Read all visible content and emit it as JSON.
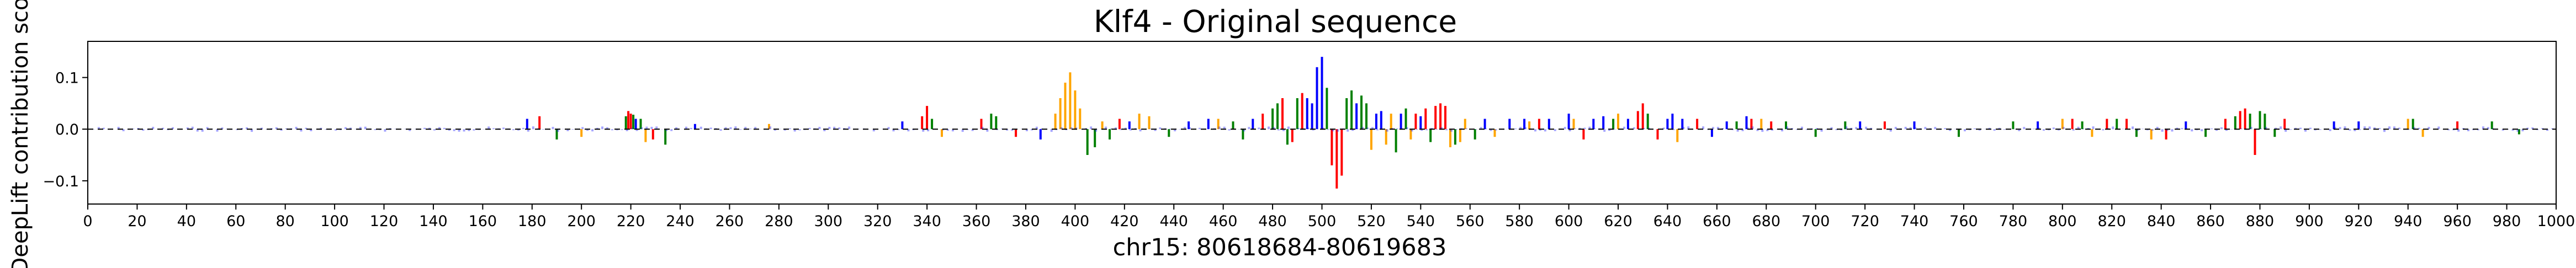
{
  "chart_data": {
    "type": "bar",
    "title": "Klf4 - Original sequence",
    "xlabel": "chr15: 80618684-80619683",
    "ylabel": "DeepLift contribution sco",
    "xlim": [
      0,
      1000
    ],
    "ylim": [
      -0.145,
      0.17
    ],
    "xticks": [
      0,
      20,
      40,
      60,
      80,
      100,
      120,
      140,
      160,
      180,
      200,
      220,
      240,
      260,
      280,
      300,
      320,
      340,
      360,
      380,
      400,
      420,
      440,
      460,
      480,
      500,
      520,
      540,
      560,
      580,
      600,
      620,
      640,
      660,
      680,
      700,
      720,
      740,
      760,
      780,
      800,
      820,
      840,
      860,
      880,
      900,
      920,
      940,
      960,
      980,
      1000
    ],
    "yticks": [
      -0.1,
      0.0,
      0.1
    ],
    "ytick_labels": [
      "−0.1",
      "0.0",
      "0.1"
    ],
    "legend": "none",
    "grid": false,
    "colors": {
      "A": "#008000",
      "C": "#0000ff",
      "G": "#ffa500",
      "T": "#ff0000"
    },
    "series": [
      {
        "position": 178,
        "base": "C",
        "value": 0.02
      },
      {
        "position": 183,
        "base": "T",
        "value": 0.025
      },
      {
        "position": 190,
        "base": "A",
        "value": -0.02
      },
      {
        "position": 200,
        "base": "G",
        "value": -0.015
      },
      {
        "position": 218,
        "base": "A",
        "value": 0.025
      },
      {
        "position": 219,
        "base": "T",
        "value": 0.035
      },
      {
        "position": 220,
        "base": "T",
        "value": 0.03
      },
      {
        "position": 221,
        "base": "A",
        "value": 0.028
      },
      {
        "position": 222,
        "base": "C",
        "value": 0.02
      },
      {
        "position": 224,
        "base": "A",
        "value": 0.02
      },
      {
        "position": 226,
        "base": "G",
        "value": -0.025
      },
      {
        "position": 229,
        "base": "T",
        "value": -0.02
      },
      {
        "position": 234,
        "base": "A",
        "value": -0.03
      },
      {
        "position": 246,
        "base": "C",
        "value": 0.01
      },
      {
        "position": 276,
        "base": "G",
        "value": 0.01
      },
      {
        "position": 330,
        "base": "C",
        "value": 0.015
      },
      {
        "position": 338,
        "base": "T",
        "value": 0.025
      },
      {
        "position": 340,
        "base": "T",
        "value": 0.045
      },
      {
        "position": 342,
        "base": "A",
        "value": 0.02
      },
      {
        "position": 346,
        "base": "G",
        "value": -0.015
      },
      {
        "position": 362,
        "base": "T",
        "value": 0.02
      },
      {
        "position": 366,
        "base": "A",
        "value": 0.03
      },
      {
        "position": 368,
        "base": "A",
        "value": 0.025
      },
      {
        "position": 376,
        "base": "T",
        "value": -0.015
      },
      {
        "position": 386,
        "base": "C",
        "value": -0.02
      },
      {
        "position": 392,
        "base": "G",
        "value": 0.03
      },
      {
        "position": 394,
        "base": "G",
        "value": 0.06
      },
      {
        "position": 396,
        "base": "G",
        "value": 0.09
      },
      {
        "position": 398,
        "base": "G",
        "value": 0.11
      },
      {
        "position": 400,
        "base": "G",
        "value": 0.075
      },
      {
        "position": 402,
        "base": "G",
        "value": 0.04
      },
      {
        "position": 405,
        "base": "A",
        "value": -0.05
      },
      {
        "position": 408,
        "base": "A",
        "value": -0.035
      },
      {
        "position": 411,
        "base": "G",
        "value": 0.015
      },
      {
        "position": 414,
        "base": "A",
        "value": -0.02
      },
      {
        "position": 418,
        "base": "T",
        "value": 0.02
      },
      {
        "position": 422,
        "base": "C",
        "value": 0.015
      },
      {
        "position": 426,
        "base": "G",
        "value": 0.03
      },
      {
        "position": 430,
        "base": "G",
        "value": 0.025
      },
      {
        "position": 438,
        "base": "A",
        "value": -0.015
      },
      {
        "position": 446,
        "base": "C",
        "value": 0.015
      },
      {
        "position": 454,
        "base": "C",
        "value": 0.02
      },
      {
        "position": 458,
        "base": "G",
        "value": 0.02
      },
      {
        "position": 464,
        "base": "A",
        "value": 0.015
      },
      {
        "position": 468,
        "base": "A",
        "value": -0.02
      },
      {
        "position": 472,
        "base": "C",
        "value": 0.02
      },
      {
        "position": 476,
        "base": "T",
        "value": 0.03
      },
      {
        "position": 480,
        "base": "A",
        "value": 0.04
      },
      {
        "position": 482,
        "base": "A",
        "value": 0.05
      },
      {
        "position": 484,
        "base": "T",
        "value": 0.06
      },
      {
        "position": 486,
        "base": "A",
        "value": -0.03
      },
      {
        "position": 488,
        "base": "T",
        "value": -0.025
      },
      {
        "position": 490,
        "base": "A",
        "value": 0.06
      },
      {
        "position": 492,
        "base": "T",
        "value": 0.07
      },
      {
        "position": 494,
        "base": "C",
        "value": 0.06
      },
      {
        "position": 496,
        "base": "C",
        "value": 0.05
      },
      {
        "position": 498,
        "base": "C",
        "value": 0.12
      },
      {
        "position": 500,
        "base": "C",
        "value": 0.14
      },
      {
        "position": 502,
        "base": "A",
        "value": 0.08
      },
      {
        "position": 504,
        "base": "T",
        "value": -0.07
      },
      {
        "position": 506,
        "base": "T",
        "value": -0.115
      },
      {
        "position": 508,
        "base": "T",
        "value": -0.09
      },
      {
        "position": 510,
        "base": "A",
        "value": 0.06
      },
      {
        "position": 512,
        "base": "A",
        "value": 0.075
      },
      {
        "position": 514,
        "base": "C",
        "value": 0.05
      },
      {
        "position": 516,
        "base": "A",
        "value": 0.065
      },
      {
        "position": 518,
        "base": "A",
        "value": 0.05
      },
      {
        "position": 520,
        "base": "G",
        "value": -0.04
      },
      {
        "position": 522,
        "base": "C",
        "value": 0.03
      },
      {
        "position": 524,
        "base": "C",
        "value": 0.035
      },
      {
        "position": 526,
        "base": "G",
        "value": -0.03
      },
      {
        "position": 528,
        "base": "G",
        "value": 0.03
      },
      {
        "position": 530,
        "base": "A",
        "value": -0.045
      },
      {
        "position": 532,
        "base": "C",
        "value": 0.03
      },
      {
        "position": 534,
        "base": "A",
        "value": 0.04
      },
      {
        "position": 536,
        "base": "G",
        "value": -0.02
      },
      {
        "position": 538,
        "base": "T",
        "value": 0.03
      },
      {
        "position": 540,
        "base": "C",
        "value": 0.025
      },
      {
        "position": 542,
        "base": "T",
        "value": 0.04
      },
      {
        "position": 544,
        "base": "A",
        "value": -0.025
      },
      {
        "position": 546,
        "base": "T",
        "value": 0.045
      },
      {
        "position": 548,
        "base": "T",
        "value": 0.05
      },
      {
        "position": 550,
        "base": "T",
        "value": 0.045
      },
      {
        "position": 552,
        "base": "G",
        "value": -0.035
      },
      {
        "position": 554,
        "base": "A",
        "value": -0.03
      },
      {
        "position": 556,
        "base": "G",
        "value": -0.025
      },
      {
        "position": 558,
        "base": "G",
        "value": 0.02
      },
      {
        "position": 562,
        "base": "A",
        "value": -0.02
      },
      {
        "position": 566,
        "base": "C",
        "value": 0.02
      },
      {
        "position": 570,
        "base": "G",
        "value": -0.015
      },
      {
        "position": 576,
        "base": "C",
        "value": 0.02
      },
      {
        "position": 582,
        "base": "C",
        "value": 0.02
      },
      {
        "position": 584,
        "base": "G",
        "value": 0.015
      },
      {
        "position": 588,
        "base": "T",
        "value": 0.02
      },
      {
        "position": 592,
        "base": "C",
        "value": 0.02
      },
      {
        "position": 600,
        "base": "C",
        "value": 0.03
      },
      {
        "position": 602,
        "base": "G",
        "value": 0.02
      },
      {
        "position": 606,
        "base": "T",
        "value": -0.02
      },
      {
        "position": 610,
        "base": "C",
        "value": 0.02
      },
      {
        "position": 614,
        "base": "C",
        "value": 0.025
      },
      {
        "position": 618,
        "base": "A",
        "value": 0.02
      },
      {
        "position": 620,
        "base": "G",
        "value": 0.03
      },
      {
        "position": 624,
        "base": "C",
        "value": 0.02
      },
      {
        "position": 628,
        "base": "T",
        "value": 0.035
      },
      {
        "position": 630,
        "base": "T",
        "value": 0.05
      },
      {
        "position": 632,
        "base": "A",
        "value": 0.03
      },
      {
        "position": 636,
        "base": "T",
        "value": -0.02
      },
      {
        "position": 640,
        "base": "C",
        "value": 0.02
      },
      {
        "position": 642,
        "base": "C",
        "value": 0.03
      },
      {
        "position": 644,
        "base": "G",
        "value": -0.025
      },
      {
        "position": 646,
        "base": "C",
        "value": 0.02
      },
      {
        "position": 652,
        "base": "T",
        "value": 0.02
      },
      {
        "position": 658,
        "base": "C",
        "value": -0.015
      },
      {
        "position": 664,
        "base": "C",
        "value": 0.015
      },
      {
        "position": 668,
        "base": "A",
        "value": 0.015
      },
      {
        "position": 672,
        "base": "C",
        "value": 0.025
      },
      {
        "position": 674,
        "base": "T",
        "value": 0.02
      },
      {
        "position": 678,
        "base": "G",
        "value": 0.02
      },
      {
        "position": 682,
        "base": "T",
        "value": 0.015
      },
      {
        "position": 688,
        "base": "A",
        "value": 0.015
      },
      {
        "position": 700,
        "base": "A",
        "value": -0.015
      },
      {
        "position": 712,
        "base": "A",
        "value": 0.015
      },
      {
        "position": 718,
        "base": "C",
        "value": 0.015
      },
      {
        "position": 728,
        "base": "T",
        "value": 0.015
      },
      {
        "position": 740,
        "base": "C",
        "value": 0.015
      },
      {
        "position": 758,
        "base": "A",
        "value": -0.015
      },
      {
        "position": 780,
        "base": "A",
        "value": 0.015
      },
      {
        "position": 790,
        "base": "C",
        "value": 0.015
      },
      {
        "position": 800,
        "base": "G",
        "value": 0.02
      },
      {
        "position": 804,
        "base": "T",
        "value": 0.02
      },
      {
        "position": 808,
        "base": "A",
        "value": 0.015
      },
      {
        "position": 812,
        "base": "G",
        "value": -0.015
      },
      {
        "position": 818,
        "base": "T",
        "value": 0.02
      },
      {
        "position": 822,
        "base": "A",
        "value": 0.02
      },
      {
        "position": 826,
        "base": "T",
        "value": 0.02
      },
      {
        "position": 830,
        "base": "A",
        "value": -0.015
      },
      {
        "position": 836,
        "base": "G",
        "value": -0.02
      },
      {
        "position": 842,
        "base": "T",
        "value": -0.02
      },
      {
        "position": 850,
        "base": "C",
        "value": 0.015
      },
      {
        "position": 858,
        "base": "A",
        "value": -0.015
      },
      {
        "position": 866,
        "base": "T",
        "value": 0.02
      },
      {
        "position": 870,
        "base": "A",
        "value": 0.025
      },
      {
        "position": 872,
        "base": "T",
        "value": 0.035
      },
      {
        "position": 874,
        "base": "T",
        "value": 0.04
      },
      {
        "position": 876,
        "base": "A",
        "value": 0.03
      },
      {
        "position": 878,
        "base": "T",
        "value": -0.05
      },
      {
        "position": 880,
        "base": "A",
        "value": 0.035
      },
      {
        "position": 882,
        "base": "A",
        "value": 0.03
      },
      {
        "position": 886,
        "base": "A",
        "value": -0.015
      },
      {
        "position": 890,
        "base": "T",
        "value": 0.02
      },
      {
        "position": 910,
        "base": "C",
        "value": 0.015
      },
      {
        "position": 920,
        "base": "C",
        "value": 0.015
      },
      {
        "position": 940,
        "base": "G",
        "value": 0.02
      },
      {
        "position": 942,
        "base": "A",
        "value": 0.02
      },
      {
        "position": 946,
        "base": "G",
        "value": -0.015
      },
      {
        "position": 960,
        "base": "T",
        "value": 0.015
      },
      {
        "position": 974,
        "base": "A",
        "value": 0.015
      },
      {
        "position": 985,
        "base": "A",
        "value": -0.01
      }
    ]
  }
}
